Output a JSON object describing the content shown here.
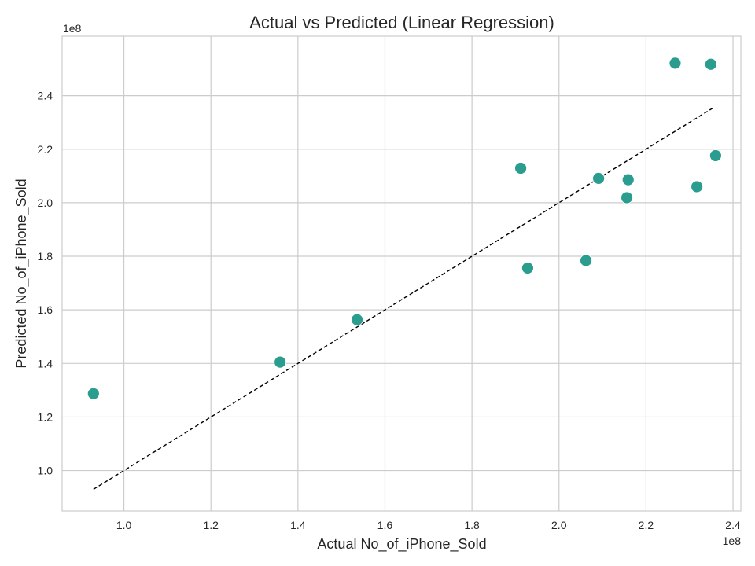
{
  "chart_data": {
    "type": "scatter",
    "title": "Actual vs Predicted (Linear Regression)",
    "xlabel": "Actual No_of_iPhone_Sold",
    "ylabel": "Predicted No_of_iPhone_Sold",
    "x_offset_label": "1e8",
    "y_offset_label": "1e8",
    "xlim": [
      85800000,
      241800000
    ],
    "ylim": [
      84900000,
      262200000
    ],
    "xticks": [
      100000000,
      120000000,
      140000000,
      160000000,
      180000000,
      200000000,
      220000000,
      240000000
    ],
    "xtick_labels": [
      "1.0",
      "1.2",
      "1.4",
      "1.6",
      "1.8",
      "2.0",
      "2.2",
      "2.4"
    ],
    "yticks": [
      100000000,
      120000000,
      140000000,
      160000000,
      180000000,
      200000000,
      220000000,
      240000000
    ],
    "ytick_labels": [
      "1.0",
      "1.2",
      "1.4",
      "1.6",
      "1.8",
      "2.0",
      "2.2",
      "2.4"
    ],
    "grid": true,
    "series": [
      {
        "x": [
          93000000,
          135900000,
          153600000,
          191200000,
          192800000,
          206200000,
          209100000,
          215600000,
          215900000,
          226700000,
          231700000,
          234900000,
          236000000
        ],
        "y": [
          128700000,
          140500000,
          156300000,
          212900000,
          175600000,
          178400000,
          209100000,
          201900000,
          208600000,
          252100000,
          206000000,
          251700000,
          217600000
        ]
      }
    ],
    "reference_line": {
      "x": [
        93000000,
        235600000
      ],
      "y": [
        93000000,
        235600000
      ],
      "style": "dashed",
      "color": "#000000"
    },
    "marker_color": "#2a9d8f",
    "grid_color": "#cccccc"
  }
}
